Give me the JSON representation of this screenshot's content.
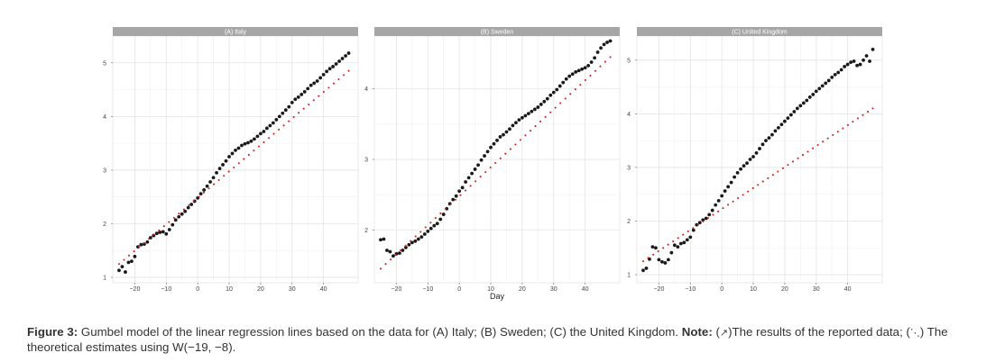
{
  "chart_data": [
    {
      "type": "scatter",
      "title": "(A) Italy",
      "x_ticks": [
        -20,
        -10,
        0,
        10,
        20,
        30,
        40
      ],
      "y_ticks": [
        1,
        2,
        3,
        4,
        5
      ],
      "xlim": [
        -27,
        51
      ],
      "ylim": [
        0.9,
        5.5
      ],
      "xlabel": "",
      "ylabel": "",
      "grid": true,
      "series": [
        {
          "type": "points",
          "color": "#1a1a1a",
          "x": [
            -25,
            -24,
            -23,
            -22,
            -21,
            -20,
            -19,
            -18,
            -17,
            -16,
            -15,
            -14,
            -13,
            -12,
            -11,
            -10,
            -9,
            -8,
            -7,
            -6,
            -5,
            -4,
            -3,
            -2,
            -1,
            0,
            1,
            2,
            3,
            4,
            5,
            6,
            7,
            8,
            9,
            10,
            11,
            12,
            13,
            14,
            15,
            16,
            17,
            18,
            19,
            20,
            21,
            22,
            23,
            24,
            25,
            26,
            27,
            28,
            29,
            30,
            31,
            32,
            33,
            34,
            35,
            36,
            37,
            38,
            39,
            40,
            41,
            42,
            43,
            44,
            45,
            46,
            47,
            48
          ],
          "y": [
            1.13,
            1.2,
            1.1,
            1.28,
            1.3,
            1.39,
            1.57,
            1.61,
            1.62,
            1.66,
            1.74,
            1.78,
            1.82,
            1.84,
            1.85,
            1.81,
            1.89,
            1.98,
            2.07,
            2.13,
            2.18,
            2.23,
            2.3,
            2.36,
            2.42,
            2.48,
            2.56,
            2.63,
            2.7,
            2.78,
            2.86,
            2.95,
            3.03,
            3.1,
            3.17,
            3.25,
            3.31,
            3.37,
            3.41,
            3.46,
            3.49,
            3.51,
            3.54,
            3.58,
            3.63,
            3.68,
            3.72,
            3.78,
            3.83,
            3.88,
            3.94,
            4.0,
            4.06,
            4.12,
            4.18,
            4.26,
            4.32,
            4.36,
            4.41,
            4.46,
            4.52,
            4.58,
            4.62,
            4.66,
            4.72,
            4.78,
            4.84,
            4.89,
            4.93,
            4.98,
            5.03,
            5.08,
            5.13,
            5.18
          ]
        },
        {
          "type": "dotted-line",
          "color": "#cc2222",
          "x": [
            -25,
            48
          ],
          "y": [
            1.25,
            4.85
          ]
        }
      ]
    },
    {
      "type": "scatter",
      "title": "(B) Sweden",
      "x_ticks": [
        -20,
        -10,
        0,
        10,
        20,
        30,
        40
      ],
      "y_ticks": [
        2,
        3,
        4
      ],
      "xlim": [
        -27,
        51
      ],
      "ylim": [
        1.25,
        4.75
      ],
      "xlabel": "Day",
      "ylabel": "",
      "grid": true,
      "series": [
        {
          "type": "points",
          "color": "#1a1a1a",
          "x": [
            -25,
            -24,
            -23,
            -22,
            -21,
            -20,
            -19,
            -18,
            -17,
            -16,
            -15,
            -14,
            -13,
            -12,
            -11,
            -10,
            -9,
            -8,
            -7,
            -6,
            -5,
            -4,
            -3,
            -2,
            -1,
            0,
            1,
            2,
            3,
            4,
            5,
            6,
            7,
            8,
            9,
            10,
            11,
            12,
            13,
            14,
            15,
            16,
            17,
            18,
            19,
            20,
            21,
            22,
            23,
            24,
            25,
            26,
            27,
            28,
            29,
            30,
            31,
            32,
            33,
            34,
            35,
            36,
            37,
            38,
            39,
            40,
            41,
            42,
            43,
            44,
            45,
            46,
            47,
            48
          ],
          "y": [
            1.86,
            1.87,
            1.71,
            1.69,
            1.63,
            1.66,
            1.67,
            1.71,
            1.75,
            1.79,
            1.82,
            1.84,
            1.87,
            1.9,
            1.94,
            1.98,
            2.02,
            2.06,
            2.09,
            2.15,
            2.22,
            2.3,
            2.37,
            2.43,
            2.48,
            2.55,
            2.6,
            2.68,
            2.74,
            2.8,
            2.86,
            2.92,
            2.99,
            3.05,
            3.11,
            3.17,
            3.22,
            3.27,
            3.32,
            3.35,
            3.39,
            3.43,
            3.48,
            3.52,
            3.56,
            3.59,
            3.62,
            3.65,
            3.68,
            3.71,
            3.74,
            3.78,
            3.82,
            3.86,
            3.91,
            3.95,
            3.99,
            4.04,
            4.09,
            4.14,
            4.18,
            4.21,
            4.24,
            4.26,
            4.28,
            4.3,
            4.33,
            4.38,
            4.44,
            4.52,
            4.58,
            4.63,
            4.66,
            4.68
          ]
        },
        {
          "type": "dotted-line",
          "color": "#cc2222",
          "x": [
            -25,
            48
          ],
          "y": [
            1.45,
            4.45
          ]
        }
      ]
    },
    {
      "type": "scatter",
      "title": "(C) United Kingdom",
      "x_ticks": [
        -20,
        -10,
        0,
        10,
        20,
        30,
        40
      ],
      "y_ticks": [
        1,
        2,
        3,
        4,
        5
      ],
      "xlim": [
        -27,
        51
      ],
      "ylim": [
        0.85,
        5.45
      ],
      "xlabel": "",
      "ylabel": "",
      "grid": true,
      "series": [
        {
          "type": "points",
          "color": "#1a1a1a",
          "x": [
            -25,
            -24,
            -23,
            -22,
            -21,
            -20,
            -19,
            -18,
            -17,
            -16,
            -15,
            -14,
            -13,
            -12,
            -11,
            -10,
            -9,
            -8,
            -7,
            -6,
            -5,
            -4,
            -3,
            -2,
            -1,
            0,
            1,
            2,
            3,
            4,
            5,
            6,
            7,
            8,
            9,
            10,
            11,
            12,
            13,
            14,
            15,
            16,
            17,
            18,
            19,
            20,
            21,
            22,
            23,
            24,
            25,
            26,
            27,
            28,
            29,
            30,
            31,
            32,
            33,
            34,
            35,
            36,
            37,
            38,
            39,
            40,
            41,
            42,
            43,
            44,
            45,
            46,
            47,
            48
          ],
          "y": [
            1.08,
            1.12,
            1.29,
            1.52,
            1.5,
            1.28,
            1.24,
            1.22,
            1.28,
            1.41,
            1.55,
            1.52,
            1.58,
            1.6,
            1.65,
            1.7,
            1.83,
            1.93,
            1.97,
            2.02,
            2.05,
            2.12,
            2.2,
            2.3,
            2.38,
            2.47,
            2.56,
            2.64,
            2.72,
            2.82,
            2.9,
            2.97,
            3.03,
            3.08,
            3.15,
            3.2,
            3.27,
            3.35,
            3.43,
            3.5,
            3.55,
            3.61,
            3.68,
            3.74,
            3.8,
            3.86,
            3.92,
            3.98,
            4.04,
            4.1,
            4.15,
            4.2,
            4.25,
            4.31,
            4.36,
            4.42,
            4.47,
            4.52,
            4.57,
            4.62,
            4.68,
            4.73,
            4.77,
            4.82,
            4.88,
            4.92,
            4.96,
            4.98,
            4.9,
            4.92,
            5.0,
            5.08,
            4.98,
            5.2
          ]
        },
        {
          "type": "dotted-line",
          "color": "#cc2222",
          "x": [
            -25,
            48
          ],
          "y": [
            1.25,
            4.1
          ]
        }
      ]
    }
  ],
  "caption": {
    "lead": "Figure 3:",
    "text1": " Gumbel model of the linear regression lines based on the data for (A) Italy; (B) Sweden; (C) the United Kingdom. ",
    "note": "Note:",
    "text2": " (",
    "text3": ")The results of the reported data; (",
    "text4": ") The theoretical estimates using W(−19, −8)."
  }
}
